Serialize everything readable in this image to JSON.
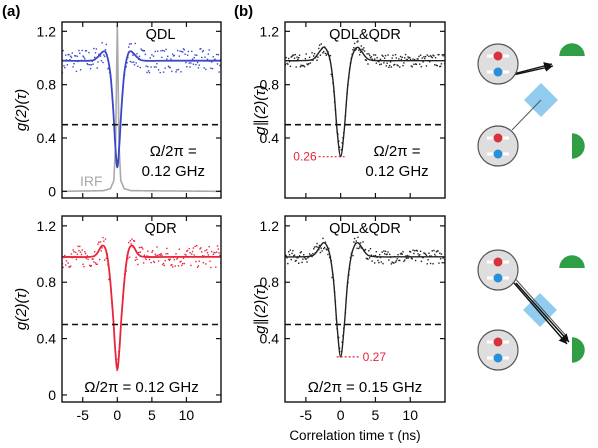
{
  "figure": {
    "x_axis_title": "Correlation time τ (ns)",
    "panel_labels": [
      "(a)",
      "(b)"
    ]
  },
  "chart_data": [
    {
      "id": "a-top",
      "type": "line",
      "panel": "(a)",
      "label": "QDL",
      "ylabel": "g(2)(τ)",
      "xlim": [
        -8,
        15
      ],
      "ylim": [
        -0.05,
        1.27
      ],
      "xticks": [
        -5,
        0,
        5,
        10
      ],
      "yticks": [
        0,
        0.4,
        0.8,
        1.2
      ],
      "ytick_labels": [
        "0",
        "0.4",
        "0.8",
        "1.2"
      ],
      "show_x_tick_labels": false,
      "threshold": 0.5,
      "annotation": [
        "Ω/2π =",
        "0.12 GHz"
      ],
      "extra_label": "IRF",
      "fit_color": "#3a48c8",
      "point_color": "#3a48c8",
      "irf_color": "#a9a9a9",
      "point_spread": 0.09,
      "series": [
        {
          "role": "fit",
          "x": [
            -8,
            -4,
            -3,
            -2,
            -1.5,
            -1,
            -0.6,
            -0.3,
            0,
            0.3,
            0.6,
            1,
            1.5,
            2,
            3,
            4,
            8,
            15
          ],
          "y": [
            0.98,
            0.98,
            1.0,
            1.05,
            1.02,
            0.88,
            0.62,
            0.35,
            0.18,
            0.35,
            0.62,
            0.88,
            1.02,
            1.05,
            1.0,
            0.98,
            0.98,
            0.98
          ]
        },
        {
          "role": "irf",
          "x": [
            -8,
            -2,
            -1,
            -0.5,
            -0.25,
            0,
            0.25,
            0.5,
            1,
            2,
            15
          ],
          "y": [
            0,
            0.005,
            0.02,
            0.08,
            0.35,
            1.25,
            0.35,
            0.08,
            0.02,
            0.005,
            0
          ]
        }
      ]
    },
    {
      "id": "b-top",
      "type": "line",
      "panel": "(b)",
      "label": "QDL&QDR",
      "ylabel": "g∥(2)(τ)",
      "xlim": [
        -8,
        15
      ],
      "ylim": [
        -0.05,
        1.27
      ],
      "xticks": [
        -5,
        0,
        5,
        10
      ],
      "yticks": [
        0.4,
        0.8,
        1.2
      ],
      "ytick_labels": [
        "0.4",
        "0.8",
        "1.2"
      ],
      "show_x_tick_labels": false,
      "threshold": 0.5,
      "min_marker": {
        "value": 0.26,
        "label": "0.26",
        "side": "left"
      },
      "annotation": [
        "Ω/2π =",
        "0.12 GHz"
      ],
      "fit_color": "#222222",
      "point_color": "#222222",
      "marker_color": "#e8253a",
      "point_spread": 0.05,
      "series": [
        {
          "role": "fit",
          "x": [
            -8,
            -6,
            -4,
            -3,
            -2.5,
            -2,
            -1.5,
            -1,
            -0.5,
            0,
            0.5,
            1,
            1.5,
            2,
            2.5,
            3,
            4,
            6,
            8,
            15
          ],
          "y": [
            0.98,
            0.98,
            0.99,
            1.05,
            1.08,
            1.06,
            0.98,
            0.78,
            0.45,
            0.26,
            0.45,
            0.78,
            0.98,
            1.06,
            1.08,
            1.05,
            0.99,
            0.98,
            0.98,
            0.98
          ]
        }
      ]
    },
    {
      "id": "a-bottom",
      "type": "line",
      "panel": "(a)",
      "label": "QDR",
      "ylabel": "g(2)(τ)",
      "xlim": [
        -8,
        15
      ],
      "ylim": [
        -0.05,
        1.27
      ],
      "xticks": [
        -5,
        0,
        5,
        10
      ],
      "xtick_labels": [
        "-5",
        "0",
        "5",
        "10"
      ],
      "yticks": [
        0,
        0.4,
        0.8,
        1.2
      ],
      "ytick_labels": [
        "0",
        "0.4",
        "0.8",
        "1.2"
      ],
      "show_x_tick_labels": true,
      "threshold": 0.5,
      "annotation": [
        "Ω/2π = 0.12 GHz"
      ],
      "fit_color": "#e8253a",
      "point_color": "#e8253a",
      "point_spread": 0.08,
      "series": [
        {
          "role": "fit",
          "x": [
            -8,
            -4,
            -3,
            -2.2,
            -1.6,
            -1.1,
            -0.6,
            -0.3,
            0,
            0.3,
            0.6,
            1.1,
            1.6,
            2.2,
            3,
            4,
            8,
            15
          ],
          "y": [
            0.98,
            0.98,
            1.0,
            1.06,
            1.02,
            0.85,
            0.55,
            0.32,
            0.18,
            0.32,
            0.55,
            0.85,
            1.02,
            1.06,
            1.0,
            0.98,
            0.98,
            0.98
          ]
        }
      ]
    },
    {
      "id": "b-bottom",
      "type": "line",
      "panel": "(b)",
      "label": "QDL&QDR",
      "ylabel": "g∥(2)(τ)",
      "xlim": [
        -8,
        15
      ],
      "ylim": [
        -0.05,
        1.27
      ],
      "xticks": [
        -5,
        0,
        5,
        10
      ],
      "xtick_labels": [
        "-5",
        "0",
        "5",
        "10"
      ],
      "yticks": [
        0.4,
        0.8,
        1.2
      ],
      "ytick_labels": [
        "0.4",
        "0.8",
        "1.2"
      ],
      "show_x_tick_labels": true,
      "threshold": 0.5,
      "min_marker": {
        "value": 0.27,
        "label": "0.27",
        "side": "right"
      },
      "annotation": [
        "Ω/2π = 0.15 GHz"
      ],
      "fit_color": "#222222",
      "point_color": "#222222",
      "marker_color": "#e8253a",
      "point_spread": 0.05,
      "series": [
        {
          "role": "fit",
          "x": [
            -8,
            -6,
            -4,
            -3,
            -2.5,
            -2,
            -1.5,
            -1,
            -0.5,
            0,
            0.5,
            1,
            1.5,
            2,
            2.5,
            3,
            4,
            6,
            8,
            15
          ],
          "y": [
            0.98,
            0.98,
            0.99,
            1.05,
            1.08,
            1.06,
            0.98,
            0.8,
            0.48,
            0.27,
            0.48,
            0.8,
            0.98,
            1.06,
            1.08,
            1.05,
            0.99,
            0.98,
            0.98,
            0.98
          ]
        }
      ]
    }
  ],
  "schematics": {
    "dot_red": "#d8323c",
    "dot_blue": "#2a8fd8",
    "splitter": "#7ec3ec",
    "detector": "#2f9e44",
    "circle_fill": "#dedede"
  }
}
